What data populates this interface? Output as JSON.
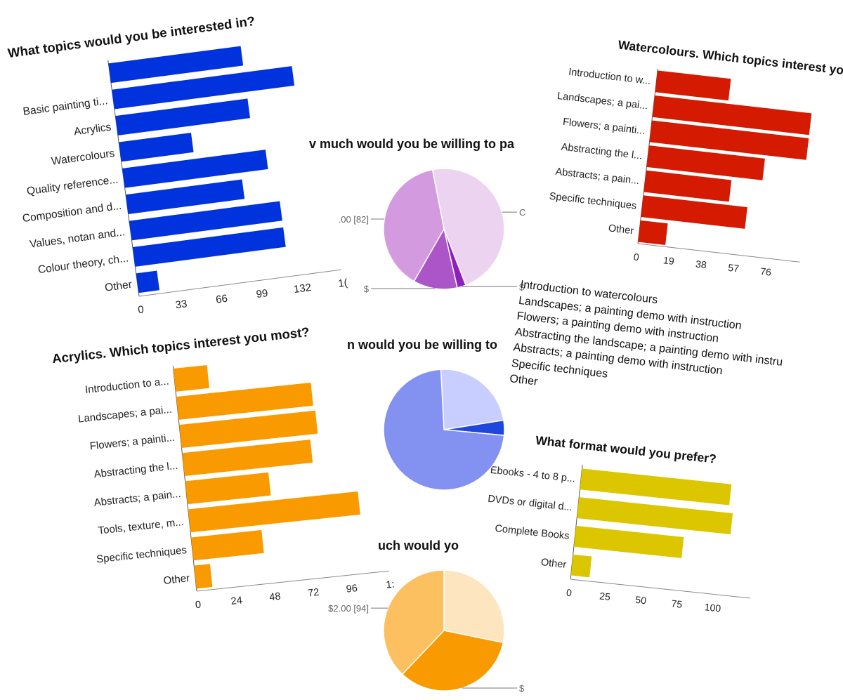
{
  "colors": {
    "blue": "#0033dd",
    "red": "#d41a00",
    "orange": "#f89a00",
    "yellow": "#dcc600"
  },
  "chart_data": [
    {
      "id": "topics",
      "type": "bar",
      "orientation": "horizontal",
      "title": "What topics would you be interested in?",
      "categories": [
        "",
        "Basic painting ti...",
        "Acrylics",
        "Watercolours",
        "Quality reference...",
        "Composition and d...",
        "Values, notan and...",
        "Colour theory, ch...",
        "Other"
      ],
      "values": [
        108,
        147,
        108,
        59,
        117,
        95,
        123,
        123,
        17
      ],
      "xticks": [
        0,
        33,
        66,
        99,
        132,
        "1("
      ],
      "xlim": [
        0,
        165
      ],
      "color": "#0033dd"
    },
    {
      "id": "watercolours",
      "type": "bar",
      "orientation": "horizontal",
      "title": "Watercolours. Which topics interest you mos",
      "categories": [
        "Introduction to w...",
        "Landscapes; a pai...",
        "Flowers; a painti...",
        "Abstracting the l...",
        "Abstracts; a pain...",
        "Specific techniques",
        "Other"
      ],
      "values": [
        43,
        92,
        92,
        68,
        50,
        61,
        16
      ],
      "xticks": [
        0,
        19,
        38,
        57,
        76
      ],
      "xlim": [
        0,
        95
      ],
      "color": "#d41a00"
    },
    {
      "id": "acrylics",
      "type": "bar",
      "orientation": "horizontal",
      "title": "Acrylics. Which topics interest you most?",
      "categories": [
        "Introduction to a...",
        "Landscapes; a pai...",
        "Flowers; a painti...",
        "Abstracting the l...",
        "Abstracts; a pain...",
        "Tools, texture, m...",
        "Specific techniques",
        "Other"
      ],
      "values": [
        21,
        84,
        85,
        80,
        52,
        106,
        44,
        10
      ],
      "xticks": [
        0,
        24,
        48,
        72,
        96,
        "1:"
      ],
      "xlim": [
        0,
        120
      ],
      "color": "#f89a00"
    },
    {
      "id": "format",
      "type": "bar",
      "orientation": "horizontal",
      "title": "What format would you prefer?",
      "categories": [
        "Ebooks - 4 to 8 p...",
        "DVDs or digital d...",
        "Complete Books",
        "Other"
      ],
      "values": [
        104,
        107,
        75,
        13
      ],
      "xticks": [
        0,
        25,
        50,
        75,
        100
      ],
      "xlim": [
        0,
        125
      ],
      "color": "#dcc600"
    },
    {
      "id": "pay_purple",
      "type": "pie",
      "title": "v much would you be willing to pa",
      "slices": [
        {
          "label": "C",
          "value": 100,
          "color": "#ecd3f0"
        },
        {
          "label": "$",
          "value": 5,
          "color": "#8e20c0"
        },
        {
          "label": "$",
          "value": 25,
          "color": "#ab55c8"
        },
        {
          "label": ".00 [82]",
          "value": 82,
          "color": "#d49ae0"
        }
      ]
    },
    {
      "id": "pay_blue",
      "type": "pie",
      "title": "n would you be willing to",
      "slices": [
        {
          "label": "",
          "value": 70,
          "color": "#c8ceff"
        },
        {
          "label": "",
          "value": 12,
          "color": "#1f47dd"
        },
        {
          "label": "",
          "value": 218,
          "color": "#8391f0"
        }
      ]
    },
    {
      "id": "pay_orange",
      "type": "pie",
      "title": "uch would yo",
      "slices": [
        {
          "label": "",
          "value": 70,
          "color": "#fde5c0"
        },
        {
          "label": "$",
          "value": 84,
          "color": "#f89a00"
        },
        {
          "label": "$2.00 [94]",
          "value": 94,
          "color": "#fcc060"
        }
      ]
    }
  ],
  "legend_list": [
    "Introduction to watercolours",
    "Landscapes; a painting demo with instruction",
    "Flowers; a painting demo with instruction",
    "Abstracting the landscape; a painting demo with instru",
    "Abstracts; a painting demo with instruction",
    "Specific techniques",
    "Other"
  ]
}
